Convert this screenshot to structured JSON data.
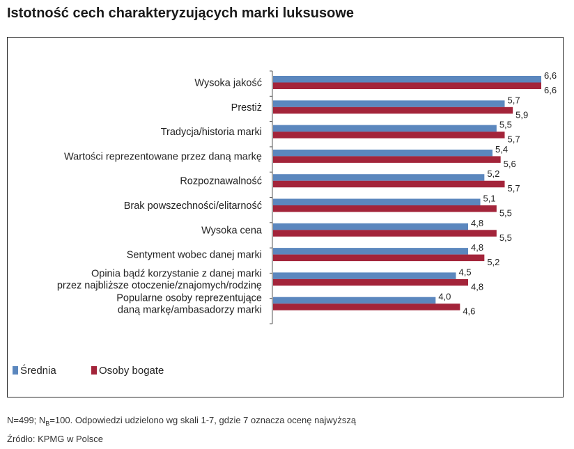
{
  "title": "Istotność cech charakteryzujących marki luksusowe",
  "chart_data": {
    "type": "bar",
    "orientation": "horizontal",
    "categories": [
      "Wysoka jakość",
      "Prestiż",
      "Tradycja/historia marki",
      "Wartości reprezentowane przez daną markę",
      "Rozpoznawalność",
      "Brak powszechności/elitarność",
      "Wysoka cena",
      "Sentyment wobec danej marki",
      "Opinia bądź korzystanie z danej marki przez najbliższe otoczenie/znajomych/rodzinę",
      "Popularne osoby reprezentujące daną markę/ambasadorzy marki"
    ],
    "category_lines": [
      [
        "Wysoka jakość"
      ],
      [
        "Prestiż"
      ],
      [
        "Tradycja/historia marki"
      ],
      [
        "Wartości reprezentowane przez daną markę"
      ],
      [
        "Rozpoznawalność"
      ],
      [
        "Brak powszechności/elitarność"
      ],
      [
        "Wysoka cena"
      ],
      [
        "Sentyment wobec danej marki"
      ],
      [
        "Opinia bądź korzystanie z danej marki",
        "przez najbliższe otoczenie/znajomych/rodzinę"
      ],
      [
        "Popularne osoby reprezentujące",
        "daną markę/ambasadorzy marki"
      ]
    ],
    "series": [
      {
        "name": "Średnia",
        "color": "#5b87be",
        "values": [
          6.6,
          5.7,
          5.5,
          5.4,
          5.2,
          5.1,
          4.8,
          4.8,
          4.5,
          4.0
        ],
        "labels": [
          "6,6",
          "5,7",
          "5,5",
          "5,4",
          "5,2",
          "5,1",
          "4,8",
          "4,8",
          "4,5",
          "4,0"
        ]
      },
      {
        "name": "Osoby bogate",
        "color": "#a3243a",
        "values": [
          6.6,
          5.9,
          5.7,
          5.6,
          5.7,
          5.5,
          5.5,
          5.2,
          4.8,
          4.6
        ],
        "labels": [
          "6,6",
          "5,9",
          "5,7",
          "5,6",
          "5,7",
          "5,5",
          "5,5",
          "5,2",
          "4,8",
          "4,6"
        ]
      }
    ],
    "xlim": [
      0,
      6.6
    ],
    "grid": false,
    "legend": "bottom-left"
  },
  "footnote": {
    "prefix": "N=499; N",
    "subscript": "B",
    "suffix": "=100. Odpowiedzi udzielono wg skali 1-7, gdzie 7 oznacza ocenę najwyższą"
  },
  "source": "Źródło: KPMG w Polsce"
}
